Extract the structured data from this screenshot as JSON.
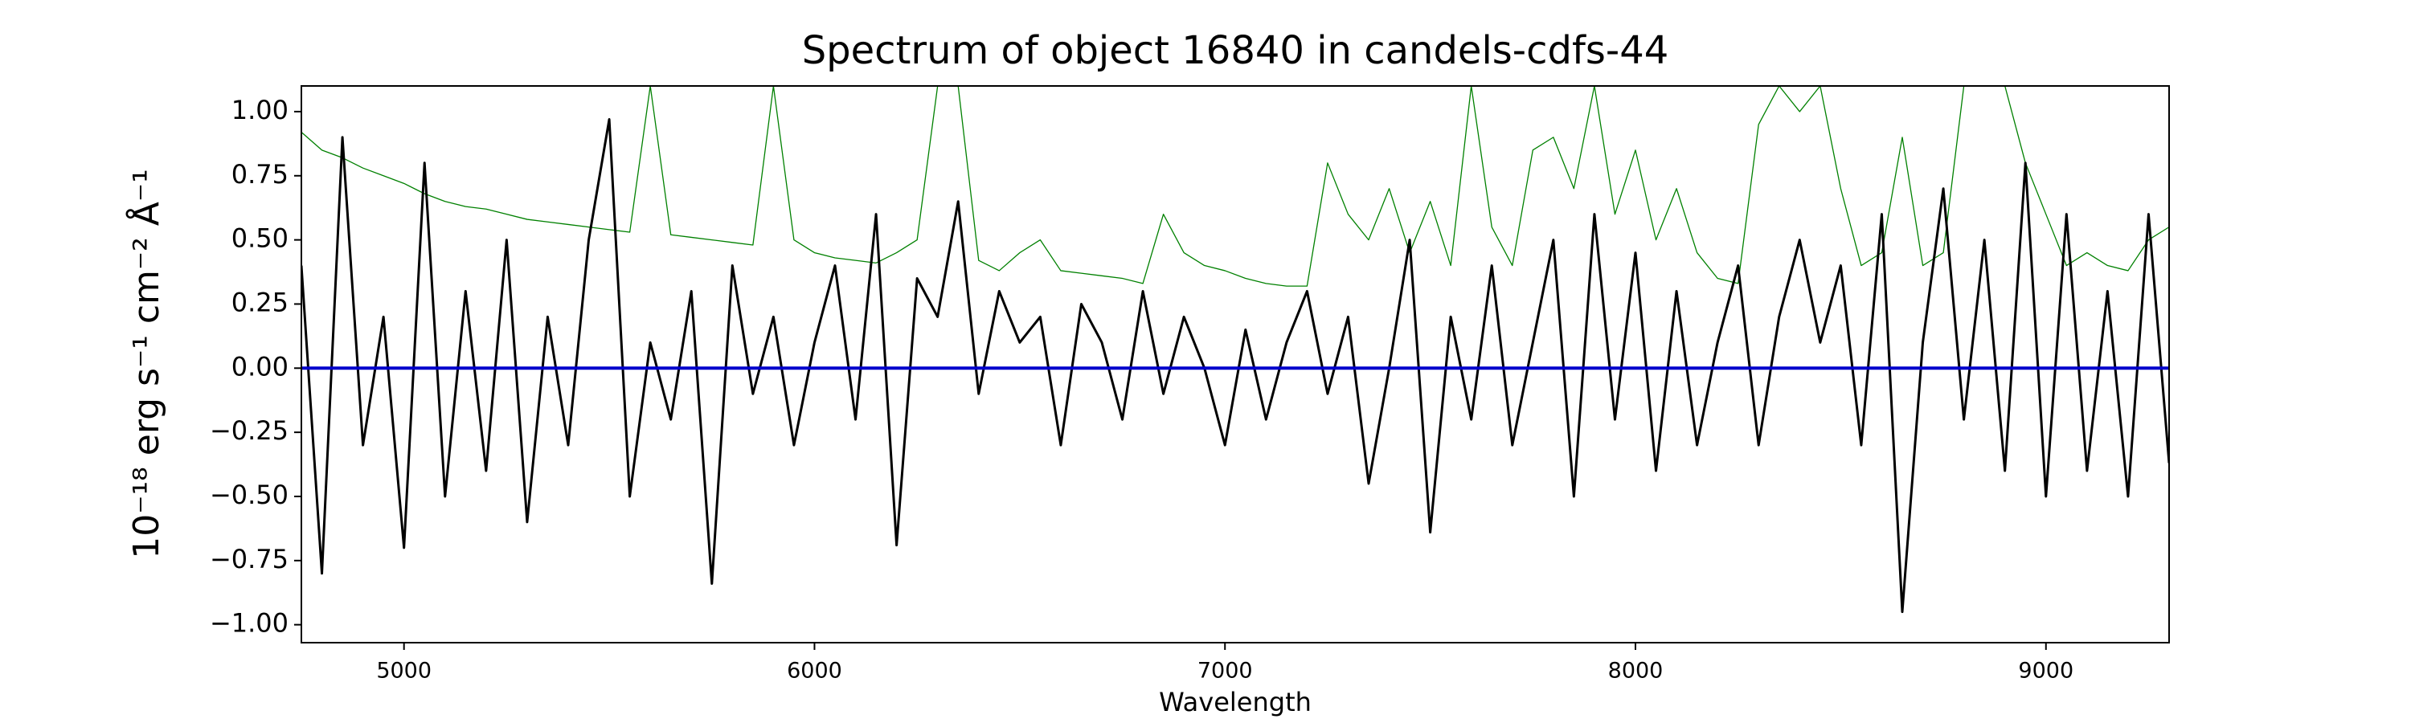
{
  "chart_data": {
    "type": "line",
    "title": "Spectrum of object 16840 in candels-cdfs-44",
    "xlabel": "Wavelength",
    "ylabel": "10⁻¹⁸ erg s⁻¹ cm⁻² Å⁻¹",
    "x": [
      4750,
      4800,
      4850,
      4900,
      4950,
      5000,
      5050,
      5100,
      5150,
      5200,
      5250,
      5300,
      5350,
      5400,
      5450,
      5500,
      5550,
      5600,
      5650,
      5700,
      5750,
      5800,
      5850,
      5900,
      5950,
      6000,
      6050,
      6100,
      6150,
      6200,
      6250,
      6300,
      6350,
      6400,
      6450,
      6500,
      6550,
      6600,
      6650,
      6700,
      6750,
      6800,
      6850,
      6900,
      6950,
      7000,
      7050,
      7100,
      7150,
      7200,
      7250,
      7300,
      7350,
      7400,
      7450,
      7500,
      7550,
      7600,
      7650,
      7700,
      7750,
      7800,
      7850,
      7900,
      7950,
      8000,
      8050,
      8100,
      8150,
      8200,
      8250,
      8300,
      8350,
      8400,
      8450,
      8500,
      8550,
      8600,
      8650,
      8700,
      8750,
      8800,
      8850,
      8900,
      8950,
      9000,
      9050,
      9100,
      9150,
      9200,
      9250,
      9300
    ],
    "series": [
      {
        "color": "#008000",
        "width": 1.3,
        "values": [
          0.92,
          0.85,
          0.82,
          0.78,
          0.75,
          0.72,
          0.68,
          0.65,
          0.63,
          0.62,
          0.6,
          0.58,
          0.57,
          0.56,
          0.55,
          0.54,
          0.53,
          1.1,
          0.52,
          0.51,
          0.5,
          0.49,
          0.48,
          1.1,
          0.5,
          0.45,
          0.43,
          0.42,
          0.41,
          0.45,
          0.5,
          1.1,
          1.1,
          0.42,
          0.38,
          0.45,
          0.5,
          0.38,
          0.37,
          0.36,
          0.35,
          0.33,
          0.6,
          0.45,
          0.4,
          0.38,
          0.35,
          0.33,
          0.32,
          0.32,
          0.8,
          0.6,
          0.5,
          0.7,
          0.45,
          0.65,
          0.4,
          1.1,
          0.55,
          0.4,
          0.85,
          0.9,
          0.7,
          1.1,
          0.6,
          0.85,
          0.5,
          0.7,
          0.45,
          0.35,
          0.33,
          0.95,
          1.1,
          1.0,
          1.1,
          0.7,
          0.4,
          0.45,
          0.9,
          0.4,
          0.45,
          1.1,
          1.1,
          1.1,
          0.8,
          0.6,
          0.4,
          0.45,
          0.4,
          0.38,
          0.5,
          0.55
        ]
      },
      {
        "color": "#000000",
        "width": 3,
        "values": [
          0.4,
          -0.8,
          0.9,
          -0.3,
          0.2,
          -0.7,
          0.8,
          -0.5,
          0.3,
          -0.4,
          0.5,
          -0.6,
          0.2,
          -0.3,
          0.5,
          0.97,
          -0.5,
          0.1,
          -0.2,
          0.3,
          -0.84,
          0.4,
          -0.1,
          0.2,
          -0.3,
          0.1,
          0.4,
          -0.2,
          0.6,
          -0.69,
          0.35,
          0.2,
          0.65,
          -0.1,
          0.3,
          0.1,
          0.2,
          -0.3,
          0.25,
          0.1,
          -0.2,
          0.3,
          -0.1,
          0.2,
          0.0,
          -0.3,
          0.15,
          -0.2,
          0.1,
          0.3,
          -0.1,
          0.2,
          -0.45,
          0.0,
          0.5,
          -0.64,
          0.2,
          -0.2,
          0.4,
          -0.3,
          0.1,
          0.5,
          -0.5,
          0.6,
          -0.2,
          0.45,
          -0.4,
          0.3,
          -0.3,
          0.1,
          0.4,
          -0.3,
          0.2,
          0.5,
          0.1,
          0.4,
          -0.3,
          0.6,
          -0.95,
          0.1,
          0.7,
          -0.2,
          0.5,
          -0.4,
          0.8,
          -0.5,
          0.6,
          -0.4,
          0.3,
          -0.5,
          0.6,
          -0.37
        ]
      },
      {
        "color": "#0000cc",
        "width": 4,
        "values": [
          0,
          0,
          0,
          0,
          0,
          0,
          0,
          0,
          0,
          0,
          0,
          0,
          0,
          0,
          0,
          0,
          0,
          0,
          0,
          0,
          0,
          0,
          0,
          0,
          0,
          0,
          0,
          0,
          0,
          0,
          0,
          0,
          0,
          0,
          0,
          0,
          0,
          0,
          0,
          0,
          0,
          0,
          0,
          0,
          0,
          0,
          0,
          0,
          0,
          0,
          0,
          0,
          0,
          0,
          0,
          0,
          0,
          0,
          0,
          0,
          0,
          0,
          0,
          0,
          0,
          0,
          0,
          0,
          0,
          0,
          0,
          0,
          0,
          0,
          0,
          0,
          0,
          0,
          0,
          0,
          0,
          0,
          0,
          0,
          0,
          0,
          0,
          0,
          0,
          0,
          0,
          0
        ]
      }
    ],
    "xlim": [
      4750,
      9300
    ],
    "ylim": [
      -1.07,
      1.1
    ],
    "xticks": [
      5000,
      6000,
      7000,
      8000,
      9000
    ],
    "yticks": [
      {
        "value": -1,
        "label": "−1.00"
      },
      {
        "value": -0.75,
        "label": "−0.75"
      },
      {
        "value": -0.5,
        "label": "−0.50"
      },
      {
        "value": -0.25,
        "label": "−0.25"
      },
      {
        "value": 0,
        "label": "0.00"
      },
      {
        "value": 0.25,
        "label": "0.25"
      },
      {
        "value": 0.5,
        "label": "0.50"
      },
      {
        "value": 0.75,
        "label": "0.75"
      },
      {
        "value": 1,
        "label": "1.00"
      }
    ]
  }
}
